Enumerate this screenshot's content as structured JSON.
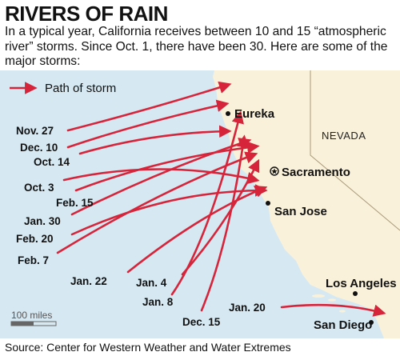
{
  "headline": "RIVERS OF RAIN",
  "intro": "In a typical year, California receives between 10 and 15 “atmospheric river” storms. Since Oct. 1, there have been 30. Here are some of the major storms:",
  "legend": {
    "label": "Path of storm"
  },
  "state_label": "NEVADA",
  "scale": {
    "label": "100 miles"
  },
  "source": "Source: Center for Western Weather and Water Extremes",
  "cities": [
    {
      "name": "Eureka",
      "marker": "dot"
    },
    {
      "name": "Sacramento",
      "marker": "star"
    },
    {
      "name": "San Jose",
      "marker": "dot"
    },
    {
      "name": "Los Angeles",
      "marker": "dot"
    },
    {
      "name": "San Diego",
      "marker": "dot"
    }
  ],
  "storms": [
    "Nov. 27",
    "Dec. 10",
    "Oct. 14",
    "Oct. 3",
    "Feb. 15",
    "Jan. 30",
    "Feb. 20",
    "Feb. 7",
    "Jan. 22",
    "Jan. 4",
    "Jan. 8",
    "Dec. 15",
    "Jan. 20"
  ],
  "colors": {
    "ocean": "#d6e9f3",
    "land": "#faf1da",
    "state_border": "#a89a7a",
    "arrow": "#d6243a"
  }
}
